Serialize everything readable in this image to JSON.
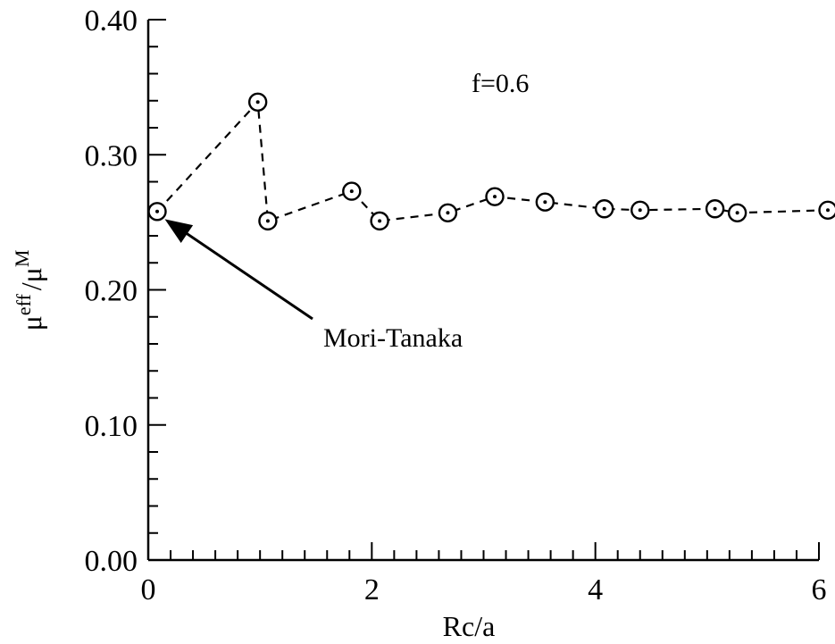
{
  "chart_data": {
    "type": "scatter",
    "xlabel": "Rc/a",
    "ylabel": {
      "base1": "μ",
      "sup1": "eff",
      "sep": "/",
      "base2": "μ",
      "sup2": "M"
    },
    "xlim": [
      0,
      6
    ],
    "ylim": [
      0.0,
      0.4
    ],
    "x_ticks": [
      0,
      2,
      4,
      6
    ],
    "x_tick_labels": [
      "0",
      "2",
      "4",
      "6"
    ],
    "y_ticks": [
      0.0,
      0.1,
      0.2,
      0.3,
      0.4
    ],
    "y_tick_labels": [
      "0.00",
      "0.10",
      "0.20",
      "0.30",
      "0.40"
    ],
    "x_minor_step": 0.2,
    "y_minor_step": 0.02,
    "grid": false,
    "line_style": "dashed",
    "marker": "circle-with-dot",
    "series": [
      {
        "x": [
          0.08,
          0.98,
          1.07,
          1.82,
          2.07,
          2.68,
          3.1,
          3.55,
          4.08,
          4.4,
          5.07,
          5.27,
          6.08
        ],
        "y": [
          0.258,
          0.339,
          0.251,
          0.273,
          0.251,
          0.257,
          0.269,
          0.265,
          0.26,
          0.259,
          0.26,
          0.257,
          0.259
        ]
      }
    ],
    "annotations": [
      {
        "text": "f=0.6"
      },
      {
        "text": "Mori-Tanaka",
        "arrow_to": [
          0.1,
          0.255
        ]
      }
    ]
  }
}
